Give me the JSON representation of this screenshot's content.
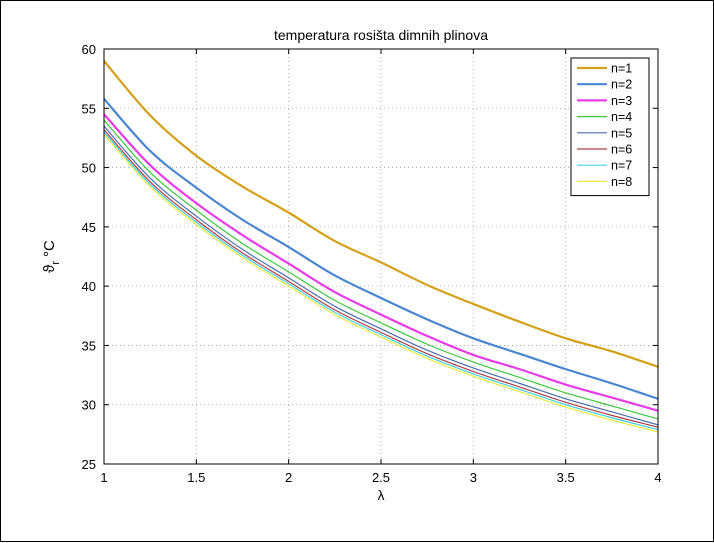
{
  "chart_data": {
    "type": "line",
    "title": "temperatura rosišta dimnih plinova",
    "xlabel": "λ",
    "ylabel_main": "ϑ",
    "ylabel_sub": "r",
    "ylabel_unit": "°C",
    "xlim": [
      1,
      4
    ],
    "ylim": [
      25,
      60
    ],
    "xticks": [
      1,
      1.5,
      2,
      2.5,
      3,
      3.5,
      4
    ],
    "xtick_labels": [
      "1",
      "1.5",
      "2",
      "2.5",
      "3",
      "3.5",
      "4"
    ],
    "yticks": [
      25,
      30,
      35,
      40,
      45,
      50,
      55,
      60
    ],
    "ytick_labels": [
      "25",
      "30",
      "35",
      "40",
      "45",
      "50",
      "55",
      "60"
    ],
    "grid": true,
    "legend_position": "top-right",
    "x": [
      1,
      1.25,
      1.5,
      1.75,
      2,
      2.25,
      2.5,
      2.75,
      3,
      3.25,
      3.5,
      3.75,
      4
    ],
    "series": [
      {
        "name": "n=1",
        "color": "#d4a017",
        "width": 2.2,
        "values": [
          59.0,
          54.4,
          51.0,
          48.4,
          46.2,
          43.8,
          42.0,
          40.1,
          38.5,
          37.0,
          35.6,
          34.5,
          33.2
        ]
      },
      {
        "name": "n=2",
        "color": "#4a86d0",
        "width": 2.2,
        "values": [
          55.8,
          51.4,
          48.3,
          45.6,
          43.3,
          40.9,
          39.0,
          37.2,
          35.6,
          34.3,
          33.0,
          31.8,
          30.5
        ]
      },
      {
        "name": "n=3",
        "color": "#e83ce8",
        "width": 2.2,
        "values": [
          54.5,
          50.2,
          47.0,
          44.3,
          41.9,
          39.5,
          37.6,
          35.8,
          34.2,
          33.0,
          31.7,
          30.6,
          29.5
        ]
      },
      {
        "name": "n=4",
        "color": "#3cc83c",
        "width": 1.2,
        "values": [
          54.0,
          49.6,
          46.4,
          43.6,
          41.2,
          38.8,
          36.9,
          35.1,
          33.6,
          32.3,
          31.0,
          29.9,
          28.8
        ]
      },
      {
        "name": "n=5",
        "color": "#4a6fb0",
        "width": 1.2,
        "values": [
          53.5,
          49.1,
          45.9,
          43.1,
          40.7,
          38.3,
          36.4,
          34.6,
          33.1,
          31.8,
          30.5,
          29.4,
          28.3
        ]
      },
      {
        "name": "n=6",
        "color": "#b0404a",
        "width": 1.2,
        "values": [
          53.2,
          48.8,
          45.6,
          42.8,
          40.4,
          38.0,
          36.1,
          34.3,
          32.8,
          31.5,
          30.2,
          29.1,
          28.1
        ]
      },
      {
        "name": "n=7",
        "color": "#40d0e0",
        "width": 1.2,
        "values": [
          53.0,
          48.6,
          45.4,
          42.6,
          40.2,
          37.8,
          35.9,
          34.1,
          32.6,
          31.3,
          30.0,
          28.9,
          27.9
        ]
      },
      {
        "name": "n=8",
        "color": "#e8e840",
        "width": 1.2,
        "values": [
          52.8,
          48.4,
          45.2,
          42.4,
          40.0,
          37.6,
          35.7,
          33.9,
          32.4,
          31.1,
          29.8,
          28.7,
          27.7
        ]
      }
    ]
  }
}
